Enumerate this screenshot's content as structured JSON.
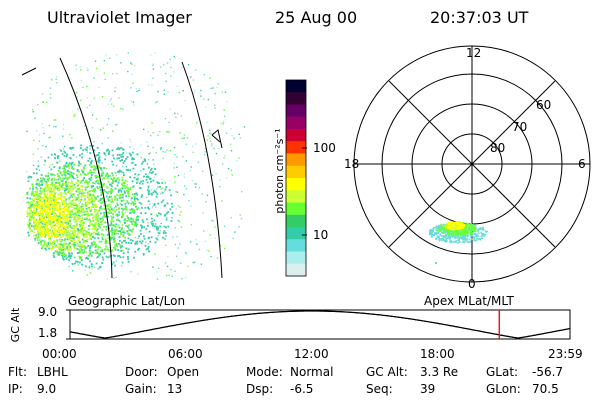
{
  "header": {
    "instrument": "Ultraviolet Imager",
    "date": "25 Aug 00",
    "time": "20:37:03 UT"
  },
  "colorbar": {
    "unit_label": "photon cm⁻²s⁻¹",
    "ticks": [
      "100",
      "10"
    ],
    "colors": [
      "#000033",
      "#330033",
      "#660066",
      "#990066",
      "#cc0033",
      "#ff3300",
      "#ff9900",
      "#ffcc00",
      "#ffff00",
      "#ccff33",
      "#66ff33",
      "#33cc66",
      "#33ccaa",
      "#66dddd",
      "#aaeeee",
      "#ddeeee"
    ]
  },
  "polar": {
    "label_12": "12",
    "label_18": "18",
    "label_6": "6",
    "label_0": "0",
    "lat_60": "60",
    "lat_70": "70",
    "lat_80": "80"
  },
  "captions": {
    "geo": "Geographic Lat/Lon",
    "apex": "Apex MLat/MLT"
  },
  "orbit": {
    "axis_label": "GC Alt",
    "y_top": "9.0",
    "y_bottom": "1.8",
    "x_ticks": [
      "00:00",
      "06:00",
      "12:00",
      "18:00",
      "23:59"
    ],
    "current_time_fraction": 0.8585
  },
  "status": {
    "row1": [
      {
        "label": "Flt:",
        "value": "LBHL"
      },
      {
        "label": "Door:",
        "value": "Open"
      },
      {
        "label": "Mode:",
        "value": "Normal"
      },
      {
        "label": "GC Alt:",
        "value": "3.3 Re"
      },
      {
        "label": "GLat:",
        "value": "-56.7"
      }
    ],
    "row2": [
      {
        "label": "IP:",
        "value": "9.0"
      },
      {
        "label": "Gain:",
        "value": "13"
      },
      {
        "label": "Dsp:",
        "value": "-6.5"
      },
      {
        "label": "Seq:",
        "value": "39"
      },
      {
        "label": "GLon:",
        "value": "70.5"
      }
    ]
  }
}
